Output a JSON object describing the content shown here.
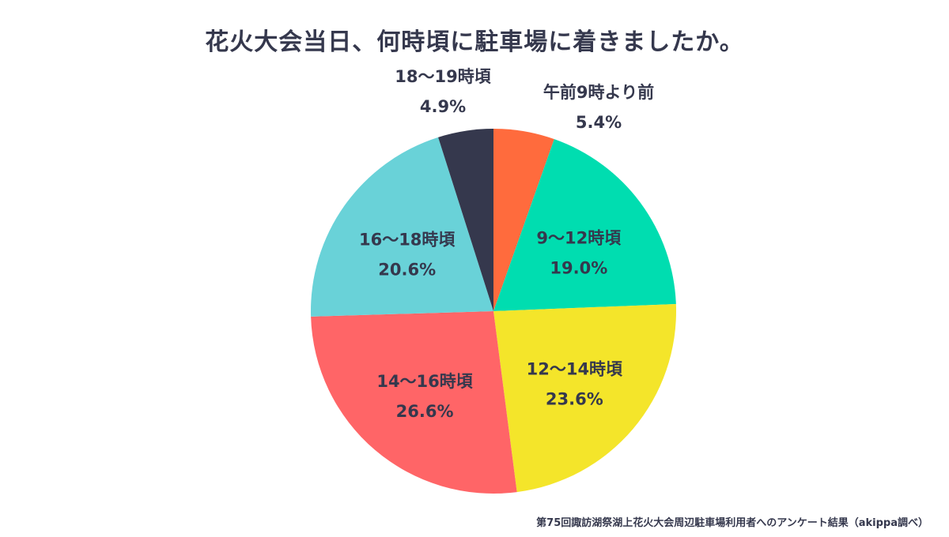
{
  "chart_data": {
    "type": "pie",
    "title": "花火大会当日、何時頃に駐車場に着きましたか。",
    "slices": [
      {
        "label": "午前9時より前",
        "value": 5.4,
        "value_text": "5.4%",
        "color": "#ff6b3d"
      },
      {
        "label": "9〜12時頃",
        "value": 19.0,
        "value_text": "19.0%",
        "color": "#00ddb0"
      },
      {
        "label": "12〜14時頃",
        "value": 23.6,
        "value_text": "23.6%",
        "color": "#f4e52a"
      },
      {
        "label": "14〜16時頃",
        "value": 26.6,
        "value_text": "26.6%",
        "color": "#ff6567"
      },
      {
        "label": "16〜18時頃",
        "value": 20.6,
        "value_text": "20.6%",
        "color": "#69d2d8"
      },
      {
        "label": "18〜19時頃",
        "value": 4.9,
        "value_text": "4.9%",
        "color": "#35384d"
      }
    ],
    "source": "第75回諏訪湖祭湖上花火大会周辺駐車場利用者へのアンケート結果（akippa調べ）"
  }
}
